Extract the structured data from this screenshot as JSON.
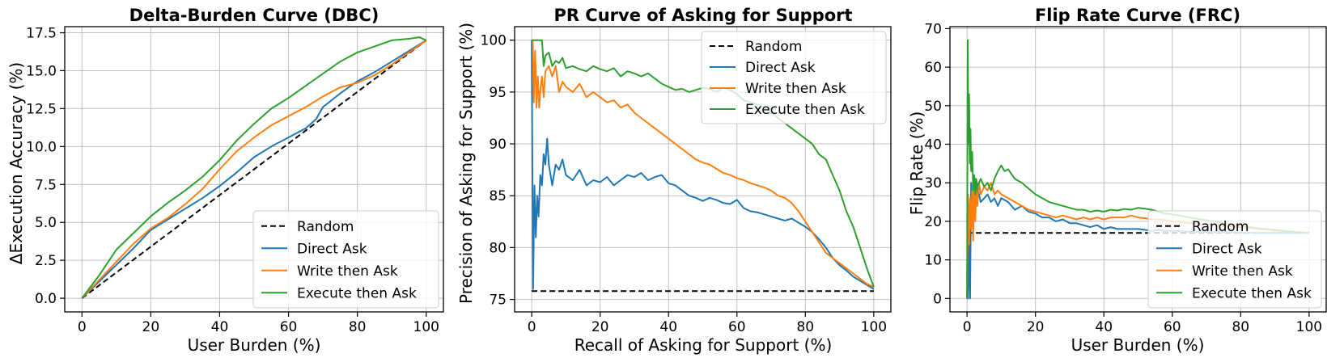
{
  "chart_data": [
    {
      "type": "line",
      "title": "Delta-Burden Curve (DBC)",
      "xlabel": "User Burden (%)",
      "ylabel": "ΔExecution Accuracy (%)",
      "xlim": [
        -5,
        105
      ],
      "ylim": [
        -0.9,
        17.9
      ],
      "xticks": [
        0,
        20,
        40,
        60,
        80,
        100
      ],
      "xtick_labels": [
        "0",
        "20",
        "40",
        "60",
        "80",
        "100"
      ],
      "yticks": [
        0,
        2.5,
        5,
        7.5,
        10,
        12.5,
        15,
        17.5
      ],
      "ytick_labels": [
        "0.0",
        "2.5",
        "5.0",
        "7.5",
        "10.0",
        "12.5",
        "15.0",
        "17.5"
      ],
      "grid": true,
      "legend_position": "lower-right",
      "series": [
        {
          "name": "Random",
          "color": "#000000",
          "dash": "dashed",
          "x": [
            0,
            100
          ],
          "y": [
            0,
            17
          ]
        },
        {
          "name": "Direct Ask",
          "color": "#1f77b4",
          "x": [
            0,
            5,
            10,
            15,
            20,
            25,
            30,
            35,
            40,
            45,
            50,
            55,
            60,
            65,
            68,
            70,
            75,
            80,
            85,
            90,
            95,
            100
          ],
          "y": [
            0,
            1.1,
            2.2,
            3.3,
            4.5,
            5.2,
            5.9,
            6.6,
            7.4,
            8.3,
            9.3,
            10.0,
            10.6,
            11.2,
            11.8,
            12.6,
            13.5,
            14.3,
            14.9,
            15.6,
            16.3,
            17.0
          ]
        },
        {
          "name": "Write then Ask",
          "color": "#ff7f0e",
          "x": [
            0,
            5,
            10,
            15,
            20,
            25,
            30,
            35,
            40,
            45,
            50,
            55,
            60,
            65,
            70,
            75,
            80,
            85,
            90,
            95,
            100
          ],
          "y": [
            0,
            1.2,
            2.4,
            3.6,
            4.6,
            5.3,
            6.2,
            7.2,
            8.5,
            9.7,
            10.6,
            11.4,
            12.0,
            12.6,
            13.3,
            13.9,
            14.2,
            14.7,
            15.4,
            16.2,
            17.0
          ]
        },
        {
          "name": "Execute then Ask",
          "color": "#2ca02c",
          "x": [
            0,
            5,
            10,
            15,
            20,
            25,
            30,
            35,
            40,
            45,
            50,
            55,
            60,
            65,
            70,
            75,
            80,
            85,
            90,
            95,
            98,
            100
          ],
          "y": [
            0,
            1.5,
            3.2,
            4.3,
            5.4,
            6.3,
            7.1,
            8.0,
            9.1,
            10.4,
            11.5,
            12.5,
            13.2,
            14.0,
            14.8,
            15.6,
            16.2,
            16.6,
            17.0,
            17.1,
            17.2,
            17.0
          ]
        }
      ]
    },
    {
      "type": "line",
      "title": "PR Curve of Asking for Support",
      "xlabel": "Recall of Asking for Support (%)",
      "ylabel": "Precision of Asking for Support (%)",
      "xlim": [
        -5,
        105
      ],
      "ylim": [
        73.8,
        101.3
      ],
      "xticks": [
        0,
        20,
        40,
        60,
        80,
        100
      ],
      "xtick_labels": [
        "0",
        "20",
        "40",
        "60",
        "80",
        "100"
      ],
      "yticks": [
        75,
        80,
        85,
        90,
        95,
        100
      ],
      "ytick_labels": [
        "75",
        "80",
        "85",
        "90",
        "95",
        "100"
      ],
      "grid": true,
      "legend_position": "upper-right",
      "series": [
        {
          "name": "Random",
          "color": "#000000",
          "dash": "dashed",
          "x": [
            0,
            100
          ],
          "y": [
            75.8,
            75.8
          ]
        },
        {
          "name": "Direct Ask",
          "color": "#1f77b4",
          "x": [
            0,
            0.4,
            0.8,
            1.2,
            1.6,
            2.0,
            2.5,
            3.0,
            3.5,
            4.0,
            4.5,
            5.0,
            6,
            7,
            8,
            9,
            10,
            12,
            14,
            16,
            18,
            20,
            22,
            24,
            26,
            28,
            30,
            32,
            34,
            36,
            38,
            40,
            42,
            44,
            46,
            48,
            50,
            52,
            54,
            56,
            58,
            60,
            62,
            64,
            66,
            68,
            70,
            72,
            74,
            76,
            78,
            80,
            82,
            84,
            86,
            88,
            90,
            92,
            94,
            96,
            98,
            100
          ],
          "y": [
            100,
            76,
            86,
            81,
            85,
            83,
            87,
            86,
            89,
            88,
            90.5,
            88,
            86,
            88,
            87.5,
            88.5,
            87,
            86.5,
            87.5,
            86,
            86.5,
            86.3,
            86.8,
            86,
            86.5,
            87,
            86.8,
            87.2,
            86.5,
            86.8,
            87,
            86.2,
            86,
            85.5,
            85,
            84.8,
            84.5,
            84.8,
            84.6,
            84.3,
            84.2,
            84.6,
            83.8,
            83.5,
            83.4,
            83.2,
            83,
            82.8,
            82.6,
            82.8,
            82.4,
            82,
            81.5,
            80.8,
            80,
            79,
            78.3,
            77.8,
            77.2,
            76.8,
            76.4,
            76
          ]
        },
        {
          "name": "Write then Ask",
          "color": "#ff7f0e",
          "x": [
            0,
            0.3,
            0.6,
            1.0,
            1.4,
            1.8,
            2.2,
            2.6,
            3.0,
            3.5,
            4,
            5,
            6,
            7,
            8,
            9,
            10,
            12,
            14,
            16,
            18,
            20,
            22,
            24,
            26,
            28,
            30,
            32,
            34,
            36,
            38,
            40,
            42,
            44,
            46,
            48,
            50,
            52,
            54,
            56,
            58,
            60,
            62,
            64,
            66,
            68,
            70,
            72,
            74,
            76,
            78,
            80,
            82,
            84,
            86,
            88,
            90,
            92,
            94,
            96,
            98,
            100
          ],
          "y": [
            100,
            100,
            94,
            99,
            93.5,
            96.5,
            93.5,
            95.5,
            96.5,
            94.5,
            97,
            97.5,
            96.5,
            97.5,
            95,
            96,
            95.5,
            95,
            95.8,
            94.5,
            95,
            94.5,
            94,
            94.2,
            93.5,
            93.8,
            93,
            92.5,
            92,
            91.5,
            91,
            90.5,
            90,
            89.5,
            89,
            88.5,
            88.2,
            88,
            87.6,
            87.2,
            87,
            86.7,
            86.5,
            86.2,
            86,
            85.8,
            85.5,
            85,
            84.8,
            84.3,
            83.5,
            82.5,
            81.5,
            80.5,
            79.5,
            79,
            78.5,
            78,
            77.5,
            77,
            76.5,
            76.2
          ]
        },
        {
          "name": "Execute then Ask",
          "color": "#2ca02c",
          "x": [
            0,
            1,
            2,
            3,
            3.5,
            4,
            5,
            6,
            7,
            8,
            9,
            10,
            12,
            14,
            16,
            18,
            20,
            22,
            24,
            26,
            28,
            30,
            32,
            34,
            36,
            38,
            40,
            42,
            44,
            46,
            48,
            50,
            52,
            54,
            56,
            58,
            60,
            62,
            64,
            66,
            68,
            70,
            72,
            74,
            76,
            78,
            80,
            82,
            84,
            86,
            88,
            90,
            92,
            94,
            96,
            98,
            100
          ],
          "y": [
            100,
            100,
            100,
            100,
            97.5,
            98.5,
            98.8,
            97.5,
            98,
            97.8,
            98.3,
            97.3,
            97.5,
            97.2,
            97,
            97.5,
            97.2,
            97,
            97.3,
            96.5,
            97,
            96.8,
            96.5,
            96.8,
            96.3,
            95.8,
            95.5,
            95.2,
            95.3,
            95,
            95.2,
            95.4,
            95.3,
            95,
            95.4,
            95.2,
            94.8,
            94.2,
            94,
            93.8,
            93.5,
            93,
            92.5,
            92,
            91.5,
            91,
            90.5,
            90,
            89,
            88.5,
            87,
            85.5,
            83.5,
            82,
            80,
            78,
            76.2
          ]
        }
      ]
    },
    {
      "type": "line",
      "title": "Flip Rate Curve (FRC)",
      "xlabel": "User Burden (%)",
      "ylabel": "Flip Rate (%)",
      "xlim": [
        -5,
        105
      ],
      "ylim": [
        -3.5,
        70.5
      ],
      "xticks": [
        0,
        20,
        40,
        60,
        80,
        100
      ],
      "xtick_labels": [
        "0",
        "20",
        "40",
        "60",
        "80",
        "100"
      ],
      "yticks": [
        0,
        10,
        20,
        30,
        40,
        50,
        60,
        70
      ],
      "ytick_labels": [
        "0",
        "10",
        "20",
        "30",
        "40",
        "50",
        "60",
        "70"
      ],
      "grid": true,
      "legend_position": "lower-right",
      "series": [
        {
          "name": "Random",
          "color": "#000000",
          "dash": "dashed",
          "x": [
            0,
            100
          ],
          "y": [
            17,
            17
          ]
        },
        {
          "name": "Direct Ask",
          "color": "#1f77b4",
          "x": [
            0,
            0.3,
            0.6,
            0.9,
            1.2,
            1.5,
            1.8,
            2.1,
            2.4,
            2.7,
            3,
            3.5,
            4,
            5,
            6,
            7,
            8,
            9,
            10,
            12,
            14,
            16,
            18,
            20,
            22,
            24,
            26,
            28,
            30,
            32,
            34,
            36,
            38,
            40,
            42,
            44,
            46,
            48,
            50,
            52,
            54,
            56,
            58,
            60,
            65,
            70,
            75,
            80,
            85,
            90,
            95,
            100
          ],
          "y": [
            0,
            0,
            18,
            0,
            30,
            20,
            27,
            22,
            31,
            24,
            29,
            27,
            25,
            26,
            27,
            25,
            26,
            24,
            26,
            25,
            23,
            24,
            22.5,
            22,
            21,
            21,
            20,
            20.5,
            19.5,
            19.5,
            19,
            18.5,
            19,
            18,
            18.5,
            18,
            18,
            18,
            18,
            17.8,
            17.5,
            17.8,
            17.5,
            17.5,
            17.3,
            17.2,
            17.2,
            17.1,
            17,
            17,
            17,
            17
          ]
        },
        {
          "name": "Write then Ask",
          "color": "#ff7f0e",
          "x": [
            0,
            0.3,
            0.6,
            0.9,
            1.2,
            1.5,
            1.8,
            2.1,
            2.4,
            2.7,
            3,
            3.5,
            4,
            5,
            6,
            7,
            8,
            9,
            10,
            12,
            14,
            16,
            18,
            20,
            22,
            24,
            26,
            28,
            30,
            32,
            34,
            36,
            38,
            40,
            42,
            44,
            46,
            48,
            50,
            52,
            54,
            56,
            58,
            60,
            65,
            70,
            75,
            80,
            85,
            90,
            95,
            100
          ],
          "y": [
            0,
            27,
            14,
            26,
            18,
            28,
            15,
            31,
            20,
            28,
            24,
            30,
            27,
            29,
            28,
            30,
            27,
            28,
            27,
            26,
            25,
            24,
            23,
            22.5,
            22,
            21.5,
            21,
            21.5,
            21,
            20.5,
            21,
            20.5,
            21,
            20.5,
            21,
            21,
            21,
            21.5,
            21,
            20.8,
            20.5,
            20.5,
            20.3,
            20,
            19.5,
            19.2,
            18.8,
            18.5,
            18,
            17.6,
            17.3,
            17
          ]
        },
        {
          "name": "Execute then Ask",
          "color": "#2ca02c",
          "x": [
            0,
            0.2,
            0.4,
            0.6,
            0.8,
            1.0,
            1.2,
            1.5,
            1.8,
            2.1,
            2.4,
            2.7,
            3,
            4,
            5,
            6,
            7,
            8,
            9,
            10,
            11,
            12,
            14,
            16,
            18,
            20,
            22,
            24,
            26,
            28,
            30,
            32,
            34,
            36,
            38,
            40,
            42,
            44,
            46,
            48,
            50,
            52,
            54,
            56,
            58,
            60,
            65,
            70,
            75,
            80,
            85,
            90,
            95,
            100
          ],
          "y": [
            0,
            67,
            40,
            53,
            35,
            44,
            33,
            38,
            28,
            32,
            27,
            31,
            29,
            31,
            29,
            30,
            28,
            31,
            33,
            34.5,
            33,
            33.5,
            31,
            30,
            28.5,
            27,
            26,
            25,
            24.5,
            24,
            23.5,
            23,
            23,
            22.5,
            22.8,
            22.5,
            23,
            22.8,
            23.2,
            23,
            23.5,
            23.3,
            23,
            22.5,
            22,
            21.8,
            21,
            20.3,
            19.5,
            18.8,
            18.2,
            17.8,
            17.3,
            17
          ]
        }
      ]
    }
  ]
}
